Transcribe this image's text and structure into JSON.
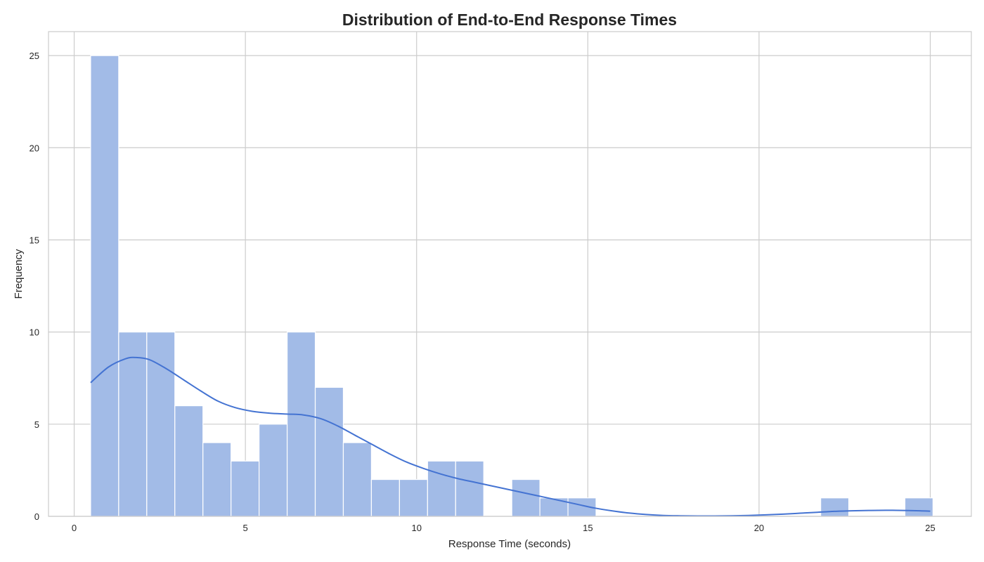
{
  "chart_data": {
    "type": "bar",
    "title": "Distribution of End-to-End Response Times",
    "xlabel": "Response Time (seconds)",
    "ylabel": "Frequency",
    "xlim": [
      -0.75,
      26.2
    ],
    "ylim": [
      0,
      26.3
    ],
    "xticks": [
      0,
      5,
      10,
      15,
      20,
      25
    ],
    "yticks": [
      0,
      5,
      10,
      15,
      20,
      25
    ],
    "grid": true,
    "bins": {
      "edges": [
        0.48,
        1.3,
        2.12,
        2.94,
        3.76,
        4.58,
        5.4,
        6.22,
        7.04,
        7.86,
        8.68,
        9.5,
        10.32,
        11.14,
        11.96,
        12.78,
        13.6,
        14.42,
        15.24,
        16.06,
        16.88,
        17.7,
        18.52,
        19.34,
        20.16,
        20.98,
        21.8,
        22.62,
        23.44,
        24.26,
        25.08
      ],
      "counts": [
        25,
        10,
        10,
        6,
        4,
        3,
        5,
        10,
        7,
        4,
        2,
        2,
        3,
        3,
        0,
        2,
        1,
        1,
        0,
        0,
        0,
        0,
        0,
        0,
        0,
        0,
        1,
        0,
        0,
        1
      ]
    },
    "kde": {
      "x": [
        0.48,
        1.0,
        1.5,
        1.8,
        2.2,
        2.7,
        3.2,
        3.7,
        4.2,
        4.7,
        5.2,
        5.7,
        6.2,
        6.7,
        7.2,
        7.7,
        8.2,
        8.7,
        9.2,
        9.7,
        10.2,
        10.7,
        11.2,
        11.7,
        12.2,
        12.7,
        13.2,
        13.7,
        14.2,
        14.7,
        15.2,
        15.7,
        16.2,
        16.7,
        17.2,
        17.7,
        18.2,
        18.7,
        19.2,
        19.7,
        20.2,
        20.7,
        21.2,
        21.7,
        22.2,
        22.7,
        23.2,
        23.7,
        24.2,
        24.7,
        25.0
      ],
      "y": [
        7.25,
        8.1,
        8.55,
        8.62,
        8.5,
        8.0,
        7.4,
        6.8,
        6.25,
        5.9,
        5.7,
        5.6,
        5.55,
        5.5,
        5.3,
        4.9,
        4.4,
        3.9,
        3.4,
        2.95,
        2.6,
        2.3,
        2.05,
        1.85,
        1.65,
        1.45,
        1.25,
        1.05,
        0.85,
        0.65,
        0.45,
        0.3,
        0.18,
        0.1,
        0.05,
        0.03,
        0.02,
        0.02,
        0.03,
        0.05,
        0.08,
        0.12,
        0.17,
        0.22,
        0.27,
        0.3,
        0.32,
        0.33,
        0.32,
        0.3,
        0.28
      ]
    },
    "colors": {
      "bar": "#a2bbe7",
      "kde": "#4473d2",
      "grid": "#cccccc"
    }
  }
}
